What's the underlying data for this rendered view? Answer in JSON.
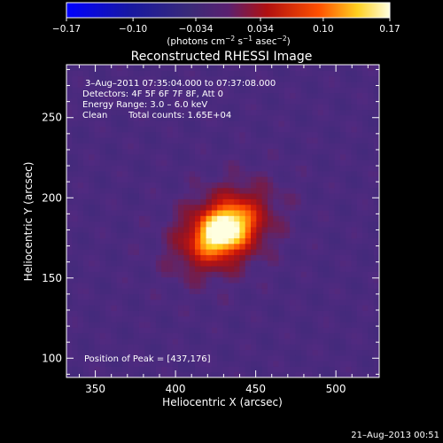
{
  "chart_data": {
    "type": "heatmap",
    "title": "Reconstructed RHESSI Image",
    "xlabel": "Heliocentric X (arcsec)",
    "ylabel": "Heliocentric Y (arcsec)",
    "xlim": [
      332,
      527
    ],
    "ylim": [
      88,
      283
    ],
    "x_ticks": [
      350,
      400,
      450,
      500
    ],
    "y_ticks": [
      100,
      150,
      200,
      250
    ],
    "colorbar": {
      "range": [
        -0.17,
        0.17
      ],
      "ticks": [
        -0.17,
        -0.1,
        -0.034,
        0.034,
        0.1,
        0.17
      ],
      "tick_labels": [
        "−0.17",
        "−0.10",
        "−0.034",
        "0.034",
        "0.10",
        "0.17"
      ],
      "unit_prefix": "(photons cm",
      "unit_exp1": "−2",
      "unit_mid": " s",
      "unit_exp2": "−1",
      "unit_mid2": " asec",
      "unit_exp3": "−2",
      "unit_suffix": ")"
    },
    "annotations": {
      "time_range": "3–Aug–2011 07:35:04.000 to 07:37:08.000",
      "detectors": "Detectors: 4F 5F 6F 7F 8F, Att 0",
      "energy_range": "Energy Range: 3.0 – 6.0 keV",
      "method": "Clean",
      "total_counts": "Total counts: 1.65E+04",
      "peak": "Position of Peak = [437,176]"
    },
    "peak_position": [
      437,
      176
    ],
    "source": {
      "x": 430,
      "y": 180,
      "sigma_x": 14,
      "sigma_y": 10,
      "angle_deg": 35,
      "peak_value": 0.17
    },
    "background_level": -0.01
  },
  "footer": {
    "date": "21–Aug–2013 00:51"
  }
}
